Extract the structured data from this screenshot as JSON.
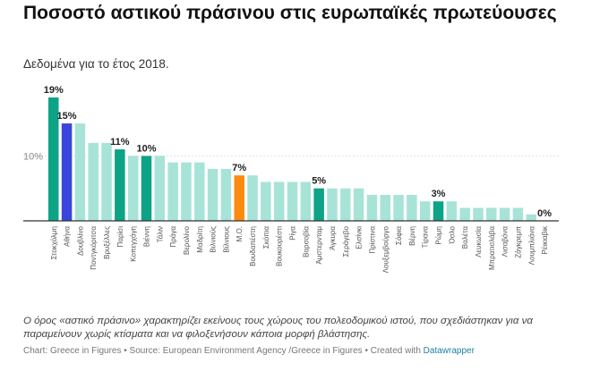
{
  "header": {
    "title": "Ποσοστό αστικού πράσινου στις ευρωπαϊκές πρωτεύουσες",
    "subtitle": "Δεδομένα για το έτος 2018."
  },
  "chart_data": {
    "type": "bar",
    "title": "Ποσοστό αστικού πράσινου στις ευρωπαϊκές πρωτεύουσες",
    "subtitle": "Δεδομένα για το έτος 2018.",
    "xlabel": "",
    "ylabel": "",
    "ylim": [
      0,
      19
    ],
    "yticks": [
      {
        "value": 10,
        "label": "10%"
      }
    ],
    "grid": true,
    "legend": "none",
    "categories": [
      "Στοκχόλμη",
      "Αθήνα",
      "Δουβλίνο",
      "Ποντγκόριτσα",
      "Βρυξέλλες",
      "Παρίσι",
      "Κοπεγχάγη",
      "Βιέννη",
      "Τάλιν",
      "Πράγα",
      "Βερολίνο",
      "Μαδρίτη",
      "Βιλνιούς",
      "Βίλνιους",
      "Μ.Ο.",
      "Βουδαπέστη",
      "Σκόπια",
      "Βουκουρέστι",
      "Ρίγα",
      "Βαρσοβία",
      "Άμστερνταμ",
      "Άγκυρα",
      "Σεράγεβο",
      "Ελσίνκι",
      "Πρίστινα",
      "Λουξεμβούργο",
      "Σόφια",
      "Βέρνη",
      "Τίρανα",
      "Ρώμη",
      "Όσλο",
      "Βαλέτα",
      "Λευκωσία",
      "Μπρατισλάβα",
      "Λισαβόνα",
      "Ζάγκρεμπ",
      "Λουμπλιάνα",
      "Ρέικιαβικ"
    ],
    "values": [
      19,
      15,
      15,
      12,
      12,
      11,
      10,
      10,
      10,
      9,
      9,
      9,
      8,
      8,
      7,
      7,
      6,
      6,
      6,
      6,
      5,
      5,
      5,
      5,
      4,
      4,
      4,
      4,
      3,
      3,
      3,
      2,
      2,
      2,
      2,
      2,
      1,
      0
    ],
    "value_labels": [
      "19%",
      "15%",
      "",
      "",
      "",
      "11%",
      "",
      "10%",
      "",
      "",
      "",
      "",
      "",
      "",
      "7%",
      "",
      "",
      "",
      "",
      "",
      "5%",
      "",
      "",
      "",
      "",
      "",
      "",
      "",
      "",
      "3%",
      "",
      "",
      "",
      "",
      "",
      "",
      "",
      "0%"
    ],
    "bar_kinds": [
      "dark",
      "athens",
      "light",
      "light",
      "light",
      "dark",
      "light",
      "dark",
      "light",
      "light",
      "light",
      "light",
      "light",
      "light",
      "avg",
      "light",
      "light",
      "light",
      "light",
      "light",
      "dark",
      "light",
      "light",
      "light",
      "light",
      "light",
      "light",
      "light",
      "light",
      "dark",
      "light",
      "light",
      "light",
      "light",
      "light",
      "light",
      "light",
      "light"
    ],
    "colors": {
      "dark": "#0da386",
      "light": "#a8e3d8",
      "athens": "#3a45de",
      "avg": "#fb8b0e",
      "axis": "#333333",
      "grid": "#e2e2e2"
    }
  },
  "notes": {
    "text": "Ο όρος «αστικό πράσινο» χαρακτηρίζει εκείνους τους χώρους του πολεοδομικού ιστού, που σχεδιάστηκαν για να παραμείνουν χωρίς κτίσματα και να φιλοξενήσουν κάποια μορφή βλάστησης."
  },
  "footer": {
    "text": "Chart: Greece in Figures • Source: European Environment Agency /Greece in Figures • Created with ",
    "link": "Datawrapper"
  }
}
